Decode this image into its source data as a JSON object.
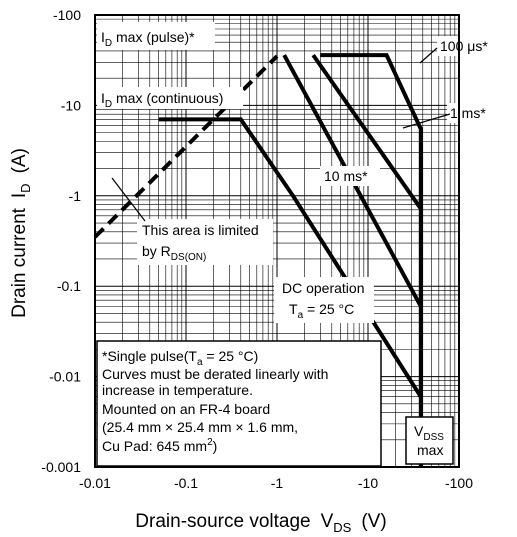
{
  "chart_data": {
    "type": "line",
    "title": "",
    "x_scale": "log",
    "y_scale": "log",
    "xlim": [
      -0.01,
      -100
    ],
    "ylim": [
      -0.001,
      -100
    ],
    "grid": true,
    "xlabel": "Drain-source voltage",
    "xlabel_symbol": "V",
    "xlabel_sub": "DS",
    "xlabel_unit": "(V)",
    "ylabel": "Drain current",
    "ylabel_symbol": "I",
    "ylabel_sub": "D",
    "ylabel_unit": "(A)",
    "x_ticks": [
      "-0.01",
      "-0.1",
      "-1",
      "-10",
      "-100"
    ],
    "y_ticks": [
      "-0.001",
      "-0.01",
      "-0.1",
      "-1",
      "-10",
      "-100"
    ],
    "series": [
      {
        "name": "100 μs*",
        "style": "solid",
        "points": [
          [
            -3.0,
            -36
          ],
          [
            -16,
            -36
          ],
          [
            -38,
            -5.5
          ],
          [
            -38,
            -0.001
          ]
        ]
      },
      {
        "name": "1 ms*",
        "style": "solid",
        "points": [
          [
            -2.5,
            -36
          ],
          [
            -38,
            -0.72
          ]
        ]
      },
      {
        "name": "10 ms*",
        "style": "solid",
        "points": [
          [
            -1.2,
            -36
          ],
          [
            -38,
            -0.06
          ]
        ]
      },
      {
        "name": "DC operation",
        "style": "solid",
        "points": [
          [
            -0.05,
            -7
          ],
          [
            -0.4,
            -7
          ],
          [
            -1.5,
            -1
          ],
          [
            -38,
            -0.006
          ]
        ]
      },
      {
        "name": "R_DS(ON) limit",
        "style": "dashed",
        "points": [
          [
            -0.01,
            -0.35
          ],
          [
            -1.0,
            -35
          ]
        ]
      }
    ],
    "annotations": {
      "id_pulse": {
        "pre": "I",
        "sub": "D",
        "post": " max (pulse)*"
      },
      "id_cont": {
        "pre": "I",
        "sub": "D",
        "post": " max (continuous)"
      },
      "label_100us": "100 μs*",
      "label_1ms": "1 ms*",
      "label_10ms": "10 ms*",
      "rds_line1": "This area is limited",
      "rds_line2_pre": "by R",
      "rds_line2_sub": "DS(ON)",
      "dc_line1": "DC operation",
      "dc_line2_pre": "T",
      "dc_line2_sub": "a",
      "dc_line2_post": " = 25 °C",
      "vdss_main": "V",
      "vdss_sub": "DSS",
      "vdss_line2": "max",
      "note_line1_pre": "*Single pulse(T",
      "note_line1_sub": "a",
      "note_line1_post": " = 25 °C)",
      "note_line2": "Curves must be derated linearly with",
      "note_line3": "increase in temperature.",
      "note_line4": "Mounted on an FR-4 board",
      "note_line5": "(25.4 mm × 25.4 mm × 1.6 mm,",
      "note_line6_pre": "Cu Pad: 645 mm",
      "note_line6_sup": "2",
      "note_line6_post": ")"
    }
  }
}
